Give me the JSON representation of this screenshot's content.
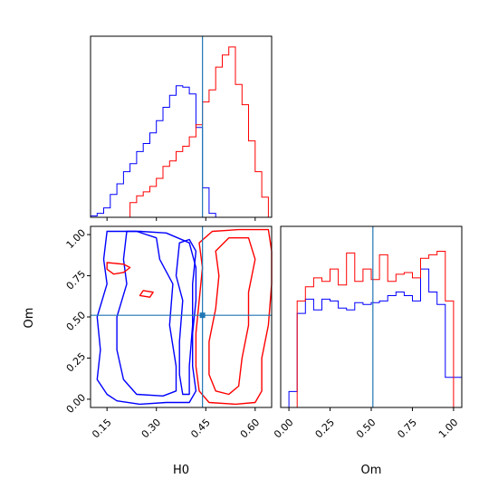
{
  "colors": {
    "series_a": "#0000ff",
    "series_b": "#ff0000",
    "truth": "#1f77b4",
    "axes": "#000000"
  },
  "chart_data": [
    {
      "type": "histogram",
      "panel": "H0 marginal",
      "xlim": [
        0.1,
        0.65
      ],
      "bin_edges": [
        0.1,
        0.12,
        0.14,
        0.16,
        0.18,
        0.2,
        0.22,
        0.24,
        0.26,
        0.28,
        0.3,
        0.32,
        0.34,
        0.36,
        0.38,
        0.4,
        0.42,
        0.44,
        0.46,
        0.48,
        0.5,
        0.52,
        0.54,
        0.56,
        0.58,
        0.6,
        0.62,
        0.64
      ],
      "series": [
        {
          "color": "#0000ff",
          "values": [
            1,
            3,
            7,
            17,
            25,
            34,
            40,
            49,
            55,
            63,
            72,
            82,
            91,
            98,
            97,
            92,
            67,
            22,
            3,
            0,
            0,
            0,
            0,
            0,
            0,
            0,
            0
          ]
        },
        {
          "color": "#ff0000",
          "values": [
            0,
            0,
            0,
            0,
            0,
            0,
            11,
            16,
            19,
            23,
            29,
            38,
            42,
            49,
            53,
            60,
            69,
            86,
            95,
            112,
            121,
            127,
            99,
            84,
            57,
            34,
            15
          ]
        }
      ],
      "truth": 0.44,
      "xticks": [
        0.15,
        0.3,
        0.45,
        0.6
      ],
      "xtick_labels_visible": false,
      "ytick_labels_visible": false
    },
    {
      "type": "contour",
      "panel": "H0 vs Om joint",
      "xlabel": "H0",
      "ylabel": "Om",
      "xlim": [
        0.1,
        0.65
      ],
      "ylim": [
        -0.05,
        1.05
      ],
      "xticks": [
        "0.15",
        "0.30",
        "0.45",
        "0.60"
      ],
      "yticks": [
        "0.00",
        "0.25",
        "0.50",
        "0.75",
        "1.00"
      ],
      "truth": {
        "x": 0.44,
        "y": 0.51
      },
      "series": [
        {
          "color": "#0000ff",
          "contours": [
            [
              [
                0.15,
                1.02
              ],
              [
                0.14,
                0.85
              ],
              [
                0.15,
                0.7
              ],
              [
                0.12,
                0.5
              ],
              [
                0.13,
                0.3
              ],
              [
                0.12,
                0.12
              ],
              [
                0.15,
                0.03
              ],
              [
                0.18,
                -0.01
              ],
              [
                0.25,
                -0.03
              ],
              [
                0.33,
                -0.02
              ],
              [
                0.4,
                -0.02
              ],
              [
                0.42,
                0.05
              ],
              [
                0.41,
                0.2
              ],
              [
                0.41,
                0.4
              ],
              [
                0.42,
                0.6
              ],
              [
                0.42,
                0.8
              ],
              [
                0.4,
                0.95
              ],
              [
                0.33,
                1.01
              ],
              [
                0.25,
                1.02
              ],
              [
                0.18,
                1.02
              ]
            ],
            [
              [
                0.21,
                1.02
              ],
              [
                0.2,
                0.85
              ],
              [
                0.21,
                0.7
              ],
              [
                0.18,
                0.5
              ],
              [
                0.18,
                0.3
              ],
              [
                0.2,
                0.12
              ],
              [
                0.24,
                0.03
              ],
              [
                0.32,
                0.02
              ],
              [
                0.36,
                0.05
              ],
              [
                0.36,
                0.2
              ],
              [
                0.34,
                0.45
              ],
              [
                0.35,
                0.7
              ],
              [
                0.31,
                0.85
              ],
              [
                0.3,
                0.98
              ],
              [
                0.24,
                1.02
              ]
            ],
            [
              [
                0.37,
                0.95
              ],
              [
                0.36,
                0.75
              ],
              [
                0.38,
                0.6
              ],
              [
                0.37,
                0.35
              ],
              [
                0.37,
                0.15
              ],
              [
                0.38,
                0.03
              ],
              [
                0.4,
                0.03
              ],
              [
                0.4,
                0.2
              ],
              [
                0.41,
                0.45
              ],
              [
                0.41,
                0.7
              ],
              [
                0.42,
                0.9
              ],
              [
                0.4,
                0.97
              ]
            ]
          ]
        },
        {
          "color": "#ff0000",
          "contours": [
            [
              [
                0.43,
                0.95
              ],
              [
                0.44,
                0.8
              ],
              [
                0.43,
                0.6
              ],
              [
                0.42,
                0.4
              ],
              [
                0.42,
                0.2
              ],
              [
                0.43,
                0.05
              ],
              [
                0.46,
                -0.02
              ],
              [
                0.54,
                -0.03
              ],
              [
                0.6,
                -0.02
              ],
              [
                0.62,
                0.05
              ],
              [
                0.62,
                0.25
              ],
              [
                0.64,
                0.45
              ],
              [
                0.65,
                0.7
              ],
              [
                0.65,
                0.9
              ],
              [
                0.64,
                1.03
              ],
              [
                0.55,
                1.03
              ],
              [
                0.47,
                1.02
              ]
            ],
            [
              [
                0.48,
                0.9
              ],
              [
                0.49,
                0.75
              ],
              [
                0.48,
                0.55
              ],
              [
                0.46,
                0.35
              ],
              [
                0.46,
                0.15
              ],
              [
                0.48,
                0.05
              ],
              [
                0.52,
                0.03
              ],
              [
                0.55,
                0.08
              ],
              [
                0.56,
                0.25
              ],
              [
                0.58,
                0.45
              ],
              [
                0.58,
                0.65
              ],
              [
                0.6,
                0.85
              ],
              [
                0.58,
                0.98
              ],
              [
                0.52,
                0.98
              ]
            ],
            [
              [
                0.15,
                0.83
              ],
              [
                0.2,
                0.82
              ],
              [
                0.22,
                0.8
              ],
              [
                0.2,
                0.77
              ],
              [
                0.17,
                0.76
              ],
              [
                0.15,
                0.79
              ]
            ],
            [
              [
                0.26,
                0.66
              ],
              [
                0.29,
                0.65
              ],
              [
                0.28,
                0.62
              ],
              [
                0.25,
                0.63
              ]
            ]
          ]
        }
      ]
    },
    {
      "type": "histogram",
      "panel": "Om marginal",
      "xlabel": "Om",
      "xlim": [
        -0.05,
        1.05
      ],
      "bin_edges": [
        -0.05,
        0.0,
        0.05,
        0.1,
        0.15,
        0.2,
        0.25,
        0.3,
        0.35,
        0.4,
        0.45,
        0.5,
        0.55,
        0.6,
        0.65,
        0.7,
        0.75,
        0.8,
        0.85,
        0.9,
        0.95,
        1.0,
        1.05
      ],
      "xticks": [
        "0.00",
        "0.25",
        "0.50",
        "0.75",
        "1.00"
      ],
      "truth": 0.51,
      "series": [
        {
          "color": "#0000ff",
          "values": [
            0,
            9,
            53,
            61,
            55,
            61,
            60,
            56,
            55,
            59,
            58,
            59,
            60,
            63,
            65,
            63,
            60,
            78,
            65,
            58,
            17,
            17
          ]
        },
        {
          "color": "#ff0000",
          "values": [
            0,
            0,
            60,
            68,
            73,
            71,
            78,
            69,
            87,
            71,
            78,
            72,
            86,
            71,
            75,
            76,
            73,
            84,
            86,
            88,
            60,
            0
          ]
        }
      ],
      "ytick_labels_visible": false
    }
  ]
}
